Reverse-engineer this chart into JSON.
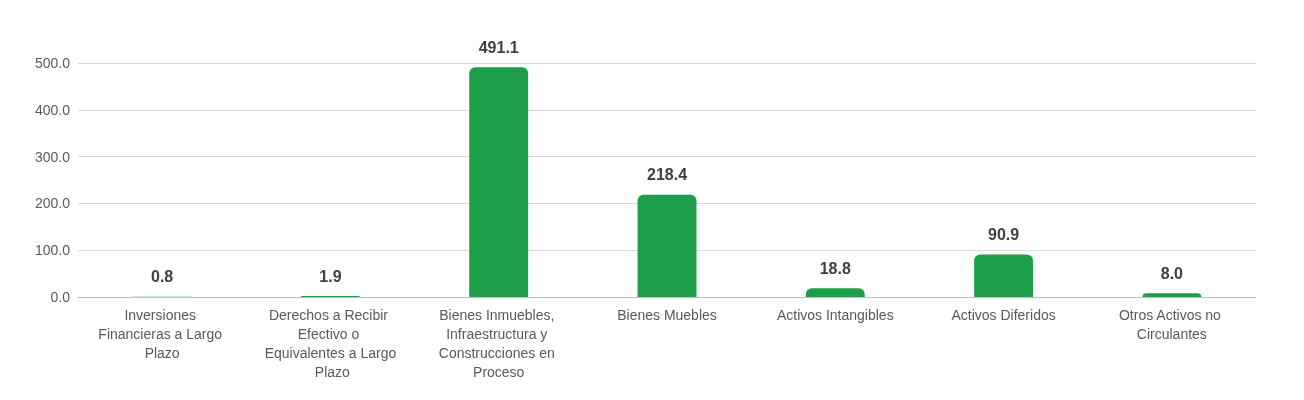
{
  "chart_data": {
    "type": "bar",
    "categories": [
      "Inversiones Financieras a Largo Plazo",
      "Derechos a Recibir Efectivo o Equivalentes a Largo Plazo",
      "Bienes Inmuebles, Infraestructura y Construcciones en Proceso",
      "Bienes Muebles",
      "Activos Intangibles",
      "Activos Diferidos",
      "Otros Activos no Circulantes"
    ],
    "values": [
      0.8,
      1.9,
      491.1,
      218.4,
      18.8,
      90.9,
      8.0
    ],
    "value_labels": [
      "0.8",
      "1.9",
      "491.1",
      "218.4",
      "18.8",
      "90.9",
      "8.0"
    ],
    "color": "#1e9e48",
    "ylim": [
      0,
      500
    ],
    "yticks": [
      {
        "value": 0,
        "label": "0.0"
      },
      {
        "value": 100,
        "label": "100.0"
      },
      {
        "value": 200,
        "label": "200.0"
      },
      {
        "value": 300,
        "label": "300.0"
      },
      {
        "value": 400,
        "label": "400.0"
      },
      {
        "value": 500,
        "label": "500.0"
      }
    ],
    "grid": "y"
  }
}
